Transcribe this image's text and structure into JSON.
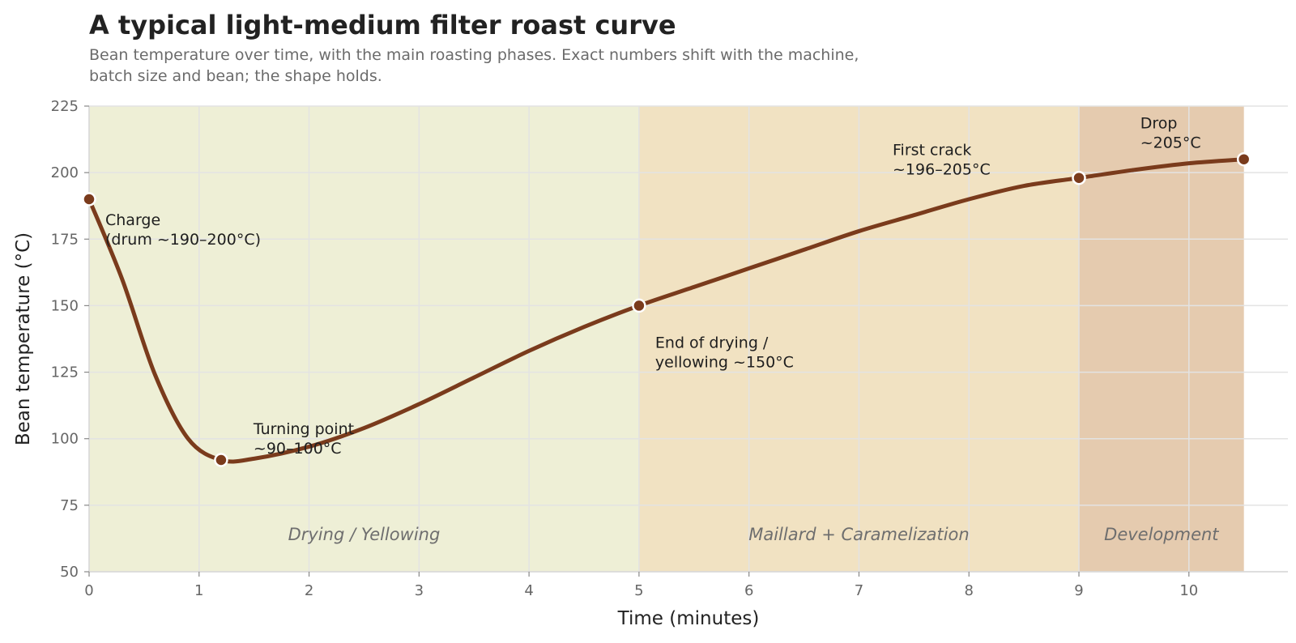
{
  "chart_data": {
    "type": "line",
    "title": "A typical light-medium filter roast curve",
    "subtitle": "Bean temperature over time, with the main roasting phases. Exact numbers shift with the machine, batch size and bean; the shape holds.",
    "xlabel": "Time (minutes)",
    "ylabel": "Bean temperature (°C)",
    "xlim": [
      0,
      10.9
    ],
    "ylim": [
      50,
      225
    ],
    "x_ticks": [
      0,
      1,
      2,
      3,
      4,
      5,
      6,
      7,
      8,
      9,
      10
    ],
    "y_ticks": [
      50,
      75,
      100,
      125,
      150,
      175,
      200,
      225
    ],
    "grid": true,
    "series": [
      {
        "values": [
          {
            "x": 0,
            "y": 190
          },
          {
            "x": 0.3,
            "y": 160
          },
          {
            "x": 0.6,
            "y": 124
          },
          {
            "x": 0.9,
            "y": 100
          },
          {
            "x": 1.2,
            "y": 92
          },
          {
            "x": 1.5,
            "y": 92.5
          },
          {
            "x": 2.0,
            "y": 97
          },
          {
            "x": 2.5,
            "y": 104
          },
          {
            "x": 3.0,
            "y": 113
          },
          {
            "x": 3.5,
            "y": 123
          },
          {
            "x": 4.0,
            "y": 133
          },
          {
            "x": 4.5,
            "y": 142
          },
          {
            "x": 5.0,
            "y": 150
          },
          {
            "x": 5.5,
            "y": 157
          },
          {
            "x": 6.0,
            "y": 164
          },
          {
            "x": 6.5,
            "y": 171
          },
          {
            "x": 7.0,
            "y": 178
          },
          {
            "x": 7.5,
            "y": 184
          },
          {
            "x": 8.0,
            "y": 190
          },
          {
            "x": 8.5,
            "y": 195
          },
          {
            "x": 9.0,
            "y": 198
          },
          {
            "x": 9.5,
            "y": 201
          },
          {
            "x": 10.0,
            "y": 203.5
          },
          {
            "x": 10.5,
            "y": 205
          }
        ],
        "color": "#7a3b1c"
      }
    ],
    "phases": [
      {
        "label": "Drying / Yellowing",
        "x_start": 0,
        "x_end": 5,
        "color": "#eeefd6"
      },
      {
        "label": "Maillard + Caramelization",
        "x_start": 5,
        "x_end": 9,
        "color": "#f1e2c2"
      },
      {
        "label": "Development",
        "x_start": 9,
        "x_end": 10.5,
        "color": "#e5cbaf"
      }
    ],
    "key_points": [
      {
        "x": 0,
        "y": 190,
        "lines": [
          "Charge",
          "(drum ~190–200°C)"
        ]
      },
      {
        "x": 1.2,
        "y": 92,
        "lines": [
          "Turning point",
          "~90–100°C"
        ]
      },
      {
        "x": 5,
        "y": 150,
        "lines": [
          "End of drying /",
          "yellowing ~150°C"
        ]
      },
      {
        "x": 9,
        "y": 198,
        "lines": [
          "First crack",
          "~196–205°C"
        ]
      },
      {
        "x": 10.5,
        "y": 205,
        "lines": [
          "Drop",
          "~205°C"
        ]
      }
    ],
    "colors": {
      "line": "#7a3b1c",
      "marker": "#7a3b1c",
      "marker_edge": "#ffffff",
      "grid": "#e3e3e3",
      "axis": "#d8d8d8"
    }
  }
}
